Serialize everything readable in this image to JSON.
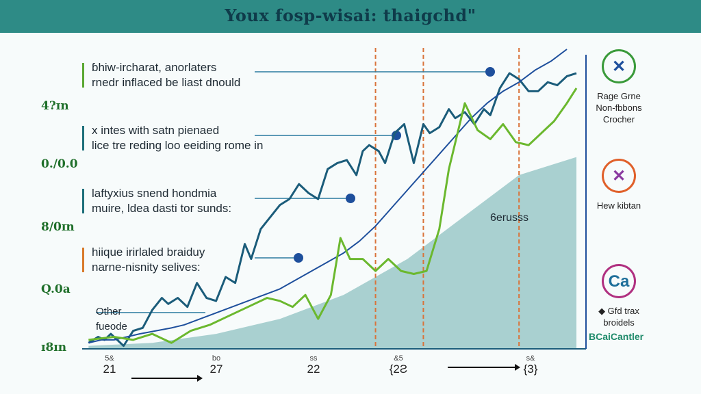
{
  "header": {
    "title": "Youx fosp-wisai: thaigchd\""
  },
  "annotations": [
    {
      "line1": "ɓhiw-ircharat, anorlaters",
      "line2": "rnedr inflaced be liast dnould",
      "accent": "#5aa832"
    },
    {
      "line1": "x intes with satn pienaed",
      "line2": "lice tre reding loo eeiding rome in",
      "accent": "#1d6f7a"
    },
    {
      "line1": "laftyxius snend hondmia",
      "line2": "muire, ldea dasti tor sunds:",
      "accent": "#1d6f7a"
    },
    {
      "line1": "hiique irirlaled braiduy",
      "line2": "narne-nisnity selives:",
      "accent": "#d97a2a"
    }
  ],
  "other_label": {
    "line1": "Other",
    "line2": "fueode"
  },
  "area_label": "6erusss",
  "x_ticks": [
    {
      "small": "5&",
      "label": "21"
    },
    {
      "small": "bo",
      "label": "27"
    },
    {
      "small": "ss",
      "label": "22"
    },
    {
      "small": "&5",
      "label": "{2Ƨ"
    },
    {
      "small": "s&",
      "label": "{3}"
    }
  ],
  "legend": {
    "items": [
      {
        "icon": "x-logo-icon",
        "glyph": "✕",
        "color": "#1e4f9c",
        "ring": "#3a9a3a",
        "lines": [
          "Rage Grne",
          "Non-fbbons",
          "Crocher"
        ]
      },
      {
        "icon": "spark-logo-icon",
        "glyph": "✕",
        "color": "#8a3aa0",
        "ring": "#e0602a",
        "lines": [
          "Hew kibtan"
        ]
      },
      {
        "icon": "ca-logo-icon",
        "glyph": "Ca",
        "color": "#1e6f9a",
        "ring": "#b03080",
        "lines": [
          "◆ Gfd trax",
          "broidels"
        ]
      }
    ],
    "brand": "BCaiCantler"
  },
  "colors": {
    "title_bg": "#2e8b86",
    "dark_line": "#1b5c7a",
    "green_line": "#6bb82e",
    "smooth_line": "#1e4f9c",
    "area": "#8fc2c2",
    "guides": "#d9733a"
  },
  "chart_data": {
    "type": "line",
    "title": "Youx fosp-wisai: thaigchd\"",
    "y_tick_labels": [
      "ɪ8ɪn",
      "Q.0a",
      "8/0ɪn",
      "0./0.0",
      "4?ɪn"
    ],
    "x_tick_labels": [
      "21",
      "27",
      "22",
      "{2Ƨ",
      "{3}"
    ],
    "series": [
      {
        "values": [
          [
            0,
            2
          ],
          [
            3,
            4
          ],
          [
            5,
            3
          ],
          [
            7,
            5
          ],
          [
            9,
            3
          ],
          [
            11,
            1
          ],
          [
            14,
            6
          ],
          [
            17,
            7
          ],
          [
            20,
            13
          ],
          [
            23,
            17
          ],
          [
            25,
            15
          ],
          [
            28,
            17
          ],
          [
            31,
            14
          ],
          [
            34,
            22
          ],
          [
            37,
            17
          ],
          [
            40,
            16
          ],
          [
            43,
            24
          ],
          [
            46,
            22
          ],
          [
            49,
            35
          ],
          [
            51,
            30
          ],
          [
            54,
            40
          ],
          [
            57,
            44
          ],
          [
            60,
            48
          ],
          [
            63,
            50
          ],
          [
            66,
            55
          ],
          [
            69,
            52
          ],
          [
            72,
            50
          ],
          [
            75,
            60
          ],
          [
            78,
            62
          ],
          [
            81,
            63
          ],
          [
            84,
            58
          ],
          [
            86,
            66
          ],
          [
            88,
            68
          ],
          [
            91,
            66
          ],
          [
            93,
            62
          ],
          [
            96,
            72
          ],
          [
            99,
            75
          ],
          [
            102,
            62
          ],
          [
            105,
            75
          ],
          [
            107,
            72
          ],
          [
            110,
            74
          ],
          [
            113,
            80
          ],
          [
            115,
            77
          ],
          [
            118,
            79
          ],
          [
            121,
            75
          ],
          [
            124,
            80
          ],
          [
            126,
            78
          ],
          [
            129,
            87
          ],
          [
            132,
            92
          ],
          [
            135,
            90
          ],
          [
            138,
            86
          ],
          [
            141,
            86
          ],
          [
            144,
            89
          ],
          [
            147,
            88
          ],
          [
            150,
            91
          ],
          [
            153,
            92
          ]
        ]
      },
      {
        "values": [
          [
            0,
            2
          ],
          [
            4,
            3
          ],
          [
            8,
            3
          ],
          [
            12,
            4
          ],
          [
            16,
            5
          ],
          [
            21,
            6
          ],
          [
            26,
            7
          ],
          [
            30,
            8
          ],
          [
            35,
            10
          ],
          [
            40,
            12
          ],
          [
            45,
            14
          ],
          [
            50,
            16
          ],
          [
            55,
            18
          ],
          [
            60,
            20
          ],
          [
            65,
            23
          ],
          [
            70,
            26
          ],
          [
            75,
            29
          ],
          [
            80,
            32
          ],
          [
            85,
            36
          ],
          [
            90,
            41
          ],
          [
            95,
            47
          ],
          [
            100,
            53
          ],
          [
            105,
            59
          ],
          [
            110,
            65
          ],
          [
            115,
            71
          ],
          [
            120,
            77
          ],
          [
            125,
            82
          ],
          [
            130,
            86
          ],
          [
            135,
            89
          ],
          [
            140,
            93
          ],
          [
            145,
            96
          ],
          [
            150,
            100
          ]
        ]
      }
    ],
    "area": {
      "values": [
        [
          0,
          1
        ],
        [
          20,
          2
        ],
        [
          40,
          5
        ],
        [
          60,
          10
        ],
        [
          80,
          18
        ],
        [
          100,
          30
        ],
        [
          120,
          46
        ],
        [
          135,
          58
        ],
        [
          153,
          64
        ]
      ]
    },
    "vertical_guides_x": [
      90,
      105,
      135
    ],
    "xlim": [
      -2,
      156
    ],
    "ylim": [
      0,
      100
    ]
  }
}
